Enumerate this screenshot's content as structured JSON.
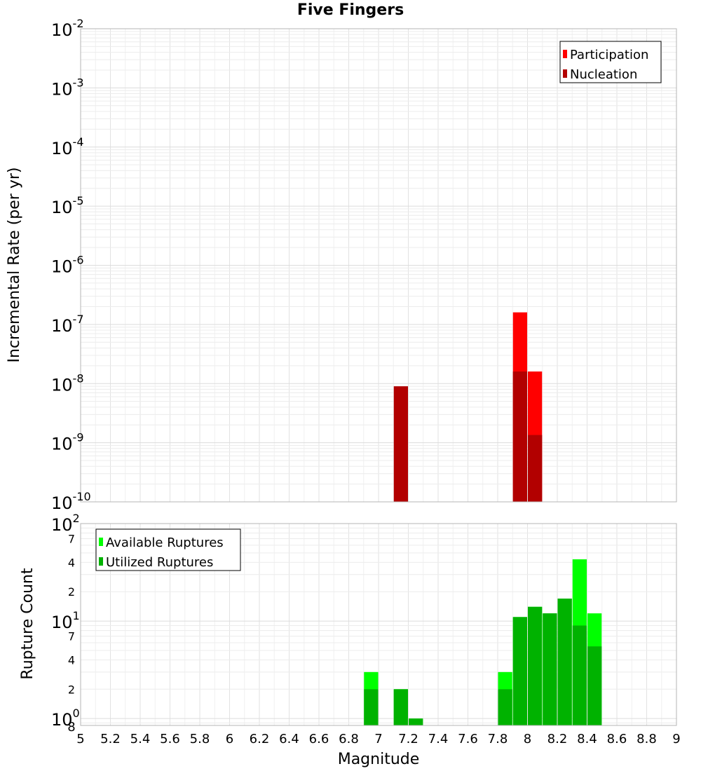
{
  "chart_data": [
    {
      "type": "bar",
      "title": "Five Fingers",
      "xlabel": "",
      "ylabel": "Incremental Rate (per yr)",
      "yscale": "log",
      "xlim": [
        5,
        9
      ],
      "ylim": [
        1e-10,
        0.01
      ],
      "y_tick_labels": [
        {
          "value": 1e-10,
          "base": "10",
          "exp": "-10"
        },
        {
          "value": 1e-09,
          "base": "10",
          "exp": "-9"
        },
        {
          "value": 1e-08,
          "base": "10",
          "exp": "-8"
        },
        {
          "value": 1e-07,
          "base": "10",
          "exp": "-7"
        },
        {
          "value": 1e-06,
          "base": "10",
          "exp": "-6"
        },
        {
          "value": 1e-05,
          "base": "10",
          "exp": "-5"
        },
        {
          "value": 0.0001,
          "base": "10",
          "exp": "-4"
        },
        {
          "value": 0.001,
          "base": "10",
          "exp": "-3"
        },
        {
          "value": 0.01,
          "base": "10",
          "exp": "-2"
        }
      ],
      "legend": {
        "position": "top-right"
      },
      "grid": true,
      "series": [
        {
          "name": "Participation",
          "color": "#ff0000",
          "bins": [
            {
              "x": 7.95,
              "y": 1.6e-07
            },
            {
              "x": 8.05,
              "y": 1.6e-08
            }
          ]
        },
        {
          "name": "Nucleation",
          "color": "#b20000",
          "bins": [
            {
              "x": 7.15,
              "y": 9e-09
            },
            {
              "x": 7.95,
              "y": 1.6e-08
            },
            {
              "x": 8.05,
              "y": 1.35e-09
            }
          ]
        }
      ]
    },
    {
      "type": "bar",
      "xlabel": "Magnitude",
      "ylabel": "Rupture Count",
      "yscale": "log",
      "xlim": [
        5,
        9
      ],
      "ylim": [
        0.85,
        100
      ],
      "x_tick_labels": [
        "5",
        "5.2",
        "5.4",
        "5.6",
        "5.8",
        "6",
        "6.2",
        "6.4",
        "6.6",
        "6.8",
        "7",
        "7.2",
        "7.4",
        "7.6",
        "7.8",
        "8",
        "8.2",
        "8.4",
        "8.6",
        "8.8",
        "9"
      ],
      "y_major_ticks": [
        {
          "value": 1,
          "base": "10",
          "exp": "0"
        },
        {
          "value": 10,
          "base": "10",
          "exp": "1"
        },
        {
          "value": 100,
          "base": "10",
          "exp": "2"
        }
      ],
      "y_minor_ticks": [
        {
          "value": 2,
          "label": "2"
        },
        {
          "value": 4,
          "label": "4"
        },
        {
          "value": 7,
          "label": "7"
        },
        {
          "value": 20,
          "label": "2"
        },
        {
          "value": 40,
          "label": "4"
        },
        {
          "value": 70,
          "label": "7"
        }
      ],
      "y_bottom_label": "8",
      "legend": {
        "position": "top-left"
      },
      "grid": true,
      "series": [
        {
          "name": "Available Ruptures",
          "color": "#00ff00",
          "bins": [
            {
              "x": 6.95,
              "y": 3
            },
            {
              "x": 7.15,
              "y": 2
            },
            {
              "x": 7.25,
              "y": 1
            },
            {
              "x": 7.85,
              "y": 3
            },
            {
              "x": 7.95,
              "y": 11
            },
            {
              "x": 8.05,
              "y": 14
            },
            {
              "x": 8.15,
              "y": 12
            },
            {
              "x": 8.25,
              "y": 17
            },
            {
              "x": 8.35,
              "y": 43
            },
            {
              "x": 8.45,
              "y": 12
            }
          ]
        },
        {
          "name": "Utilized Ruptures",
          "color": "#00b200",
          "bins": [
            {
              "x": 6.95,
              "y": 2
            },
            {
              "x": 7.15,
              "y": 2
            },
            {
              "x": 7.25,
              "y": 1
            },
            {
              "x": 7.85,
              "y": 2
            },
            {
              "x": 7.95,
              "y": 11
            },
            {
              "x": 8.05,
              "y": 14
            },
            {
              "x": 8.15,
              "y": 12
            },
            {
              "x": 8.25,
              "y": 17
            },
            {
              "x": 8.35,
              "y": 9
            },
            {
              "x": 8.45,
              "y": 5.5
            }
          ]
        }
      ]
    }
  ]
}
